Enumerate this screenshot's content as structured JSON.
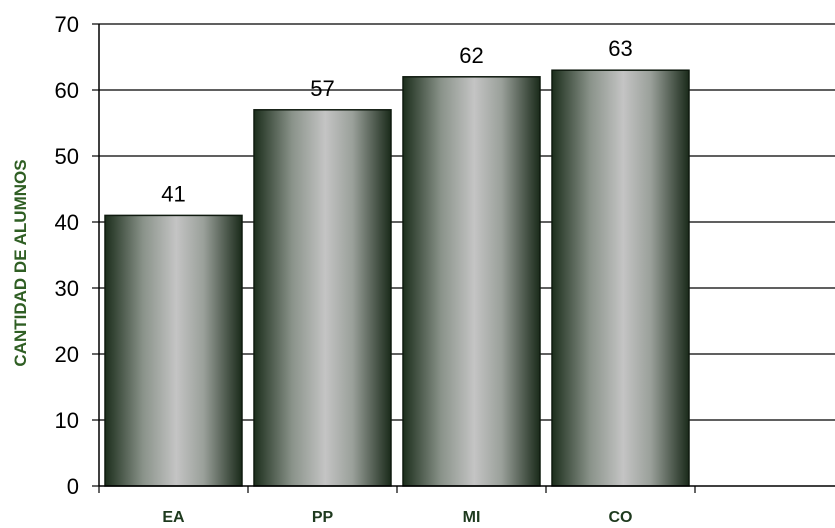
{
  "chart_data": {
    "type": "bar",
    "categories": [
      "EA",
      "PP",
      "MI",
      "CO"
    ],
    "values": [
      41,
      57,
      62,
      63
    ],
    "title": "",
    "xlabel": "",
    "ylabel": "CANTIDAD DE ALUMNOS",
    "ylim": [
      0,
      70
    ],
    "yticks": [
      0,
      10,
      20,
      30,
      40,
      50,
      60,
      70
    ],
    "grid": true,
    "legend": "none",
    "colors": {
      "bar_dark": "#1c2e1c",
      "bar_light": "#c4c4c4",
      "ylabel_color": "#2f5e23",
      "category_color": "#1e3a1e"
    }
  }
}
